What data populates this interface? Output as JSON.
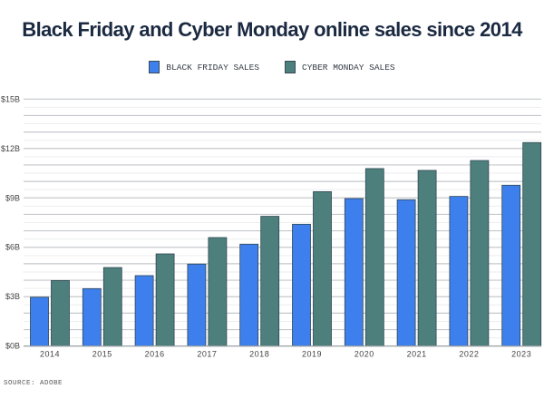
{
  "chart_data": {
    "type": "bar",
    "title": "Black Friday and Cyber Monday online sales since 2014",
    "categories": [
      "2014",
      "2015",
      "2016",
      "2017",
      "2018",
      "2019",
      "2020",
      "2021",
      "2022",
      "2023"
    ],
    "series": [
      {
        "name": "BLACK FRIDAY SALES",
        "color": "#3d7fec",
        "values": [
          2.97,
          3.49,
          4.28,
          4.98,
          6.19,
          7.4,
          8.96,
          8.89,
          9.09,
          9.77
        ]
      },
      {
        "name": "CYBER MONDAY SALES",
        "color": "#4d7f7c",
        "values": [
          3.98,
          4.77,
          5.6,
          6.59,
          7.88,
          9.38,
          10.78,
          10.67,
          11.27,
          12.36
        ]
      }
    ],
    "ylim": [
      0,
      15
    ],
    "yticks": [
      0,
      3,
      6,
      9,
      12,
      15
    ],
    "ytick_labels": [
      "$0B",
      "$3B",
      "$6B",
      "$9B",
      "$12B",
      "$15B"
    ],
    "xlabel": "",
    "ylabel": "",
    "grid": true,
    "legend": "top-center"
  },
  "source": "SOURCE: ADOBE"
}
